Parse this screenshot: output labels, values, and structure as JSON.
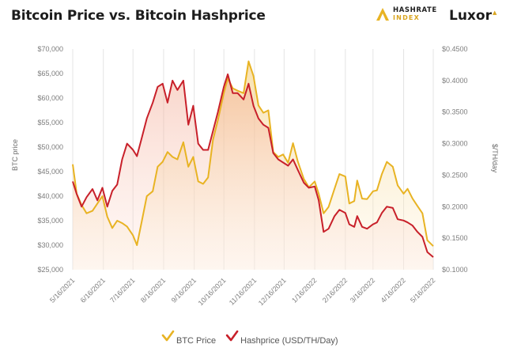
{
  "header": {
    "title": "Bitcoin Price vs. Bitcoin Hashprice",
    "logo_hashrate_line1": "HASHRATE",
    "logo_hashrate_line2": "INDEX",
    "logo_luxor": "Luxor"
  },
  "colors": {
    "btc": "#e8b323",
    "hashprice": "#c8202a",
    "fill_btc": "#f7e2a8",
    "fill_hash": "#f6c9b8"
  },
  "chart_data": {
    "type": "line",
    "title": "Bitcoin Price vs. Bitcoin Hashprice",
    "ylabel_left": "BTC price",
    "ylabel_right": "$/TH/day",
    "ylim_left": [
      25000,
      70000
    ],
    "ylim_right": [
      0.1,
      0.45
    ],
    "yticks_left": [
      "$25,000",
      "$30,000",
      "$35,000",
      "$40,000",
      "$45,000",
      "$50,000",
      "$55,000",
      "$60,000",
      "$65,000",
      "$70,000"
    ],
    "yticks_right": [
      "$0.1000",
      "$0.1500",
      "$0.2000",
      "$0.2500",
      "$0.3000",
      "$0.3500",
      "$0.4000",
      "$0.4500"
    ],
    "xticks": [
      "5/16/2021",
      "6/16/2021",
      "7/16/2021",
      "8/16/2021",
      "9/16/2021",
      "10/16/2021",
      "11/16/2021",
      "12/16/2021",
      "1/16/2022",
      "2/16/2022",
      "3/16/2022",
      "4/16/2022",
      "5/16/2022"
    ],
    "grid": "vertical",
    "legend_position": "bottom",
    "series": [
      {
        "name": "BTC Price",
        "axis": "left",
        "points": [
          [
            "2021-05-16",
            46500
          ],
          [
            "2021-05-20",
            40500
          ],
          [
            "2021-05-25",
            38200
          ],
          [
            "2021-05-30",
            36500
          ],
          [
            "2021-06-05",
            37000
          ],
          [
            "2021-06-10",
            38500
          ],
          [
            "2021-06-15",
            40000
          ],
          [
            "2021-06-20",
            35800
          ],
          [
            "2021-06-25",
            33500
          ],
          [
            "2021-06-30",
            35000
          ],
          [
            "2021-07-05",
            34500
          ],
          [
            "2021-07-10",
            33800
          ],
          [
            "2021-07-16",
            32000
          ],
          [
            "2021-07-20",
            30000
          ],
          [
            "2021-07-25",
            35000
          ],
          [
            "2021-07-30",
            40000
          ],
          [
            "2021-08-05",
            41000
          ],
          [
            "2021-08-10",
            46000
          ],
          [
            "2021-08-15",
            47000
          ],
          [
            "2021-08-20",
            49000
          ],
          [
            "2021-08-25",
            48000
          ],
          [
            "2021-08-30",
            47500
          ],
          [
            "2021-09-05",
            51000
          ],
          [
            "2021-09-10",
            46000
          ],
          [
            "2021-09-15",
            48000
          ],
          [
            "2021-09-20",
            43000
          ],
          [
            "2021-09-25",
            42500
          ],
          [
            "2021-09-30",
            43800
          ],
          [
            "2021-10-05",
            51500
          ],
          [
            "2021-10-10",
            55500
          ],
          [
            "2021-10-16",
            61000
          ],
          [
            "2021-10-20",
            64000
          ],
          [
            "2021-10-25",
            62000
          ],
          [
            "2021-10-30",
            61500
          ],
          [
            "2021-11-05",
            61000
          ],
          [
            "2021-11-10",
            67500
          ],
          [
            "2021-11-15",
            64500
          ],
          [
            "2021-11-20",
            58500
          ],
          [
            "2021-11-25",
            57000
          ],
          [
            "2021-11-30",
            57500
          ],
          [
            "2021-12-05",
            49000
          ],
          [
            "2021-12-10",
            48000
          ],
          [
            "2021-12-15",
            48500
          ],
          [
            "2021-12-20",
            46800
          ],
          [
            "2021-12-25",
            50800
          ],
          [
            "2021-12-30",
            47000
          ],
          [
            "2022-01-05",
            43500
          ],
          [
            "2022-01-10",
            41800
          ],
          [
            "2022-01-16",
            43000
          ],
          [
            "2022-01-20",
            40500
          ],
          [
            "2022-01-25",
            36500
          ],
          [
            "2022-01-30",
            37800
          ],
          [
            "2022-02-05",
            41500
          ],
          [
            "2022-02-10",
            44500
          ],
          [
            "2022-02-16",
            44000
          ],
          [
            "2022-02-20",
            38500
          ],
          [
            "2022-02-25",
            39000
          ],
          [
            "2022-02-28",
            43200
          ],
          [
            "2022-03-05",
            39500
          ],
          [
            "2022-03-10",
            39400
          ],
          [
            "2022-03-16",
            41000
          ],
          [
            "2022-03-20",
            41200
          ],
          [
            "2022-03-25",
            44500
          ],
          [
            "2022-03-30",
            47000
          ],
          [
            "2022-04-05",
            46000
          ],
          [
            "2022-04-10",
            42200
          ],
          [
            "2022-04-16",
            40500
          ],
          [
            "2022-04-20",
            41500
          ],
          [
            "2022-04-25",
            39500
          ],
          [
            "2022-04-30",
            38000
          ],
          [
            "2022-05-05",
            36500
          ],
          [
            "2022-05-10",
            31000
          ],
          [
            "2022-05-16",
            29800
          ]
        ]
      },
      {
        "name": "Hashprice (USD/TH/Day)",
        "axis": "right",
        "points": [
          [
            "2021-05-16",
            0.24
          ],
          [
            "2021-05-20",
            0.22
          ],
          [
            "2021-05-25",
            0.2
          ],
          [
            "2021-05-30",
            0.215
          ],
          [
            "2021-06-05",
            0.228
          ],
          [
            "2021-06-10",
            0.21
          ],
          [
            "2021-06-15",
            0.23
          ],
          [
            "2021-06-20",
            0.2
          ],
          [
            "2021-06-25",
            0.225
          ],
          [
            "2021-06-30",
            0.235
          ],
          [
            "2021-07-05",
            0.275
          ],
          [
            "2021-07-10",
            0.3
          ],
          [
            "2021-07-16",
            0.29
          ],
          [
            "2021-07-20",
            0.28
          ],
          [
            "2021-07-25",
            0.31
          ],
          [
            "2021-07-30",
            0.34
          ],
          [
            "2021-08-05",
            0.365
          ],
          [
            "2021-08-10",
            0.39
          ],
          [
            "2021-08-15",
            0.395
          ],
          [
            "2021-08-20",
            0.365
          ],
          [
            "2021-08-25",
            0.4
          ],
          [
            "2021-08-30",
            0.385
          ],
          [
            "2021-09-05",
            0.4
          ],
          [
            "2021-09-10",
            0.33
          ],
          [
            "2021-09-15",
            0.36
          ],
          [
            "2021-09-20",
            0.3
          ],
          [
            "2021-09-25",
            0.29
          ],
          [
            "2021-09-30",
            0.29
          ],
          [
            "2021-10-05",
            0.32
          ],
          [
            "2021-10-10",
            0.35
          ],
          [
            "2021-10-16",
            0.39
          ],
          [
            "2021-10-20",
            0.41
          ],
          [
            "2021-10-25",
            0.38
          ],
          [
            "2021-10-30",
            0.38
          ],
          [
            "2021-11-05",
            0.37
          ],
          [
            "2021-11-10",
            0.395
          ],
          [
            "2021-11-15",
            0.36
          ],
          [
            "2021-11-20",
            0.34
          ],
          [
            "2021-11-25",
            0.33
          ],
          [
            "2021-11-30",
            0.325
          ],
          [
            "2021-12-05",
            0.285
          ],
          [
            "2021-12-10",
            0.275
          ],
          [
            "2021-12-15",
            0.27
          ],
          [
            "2021-12-20",
            0.265
          ],
          [
            "2021-12-25",
            0.275
          ],
          [
            "2021-12-30",
            0.258
          ],
          [
            "2022-01-05",
            0.238
          ],
          [
            "2022-01-10",
            0.23
          ],
          [
            "2022-01-16",
            0.232
          ],
          [
            "2022-01-20",
            0.21
          ],
          [
            "2022-01-25",
            0.16
          ],
          [
            "2022-01-30",
            0.165
          ],
          [
            "2022-02-05",
            0.185
          ],
          [
            "2022-02-10",
            0.195
          ],
          [
            "2022-02-16",
            0.19
          ],
          [
            "2022-02-20",
            0.172
          ],
          [
            "2022-02-25",
            0.168
          ],
          [
            "2022-02-28",
            0.185
          ],
          [
            "2022-03-05",
            0.168
          ],
          [
            "2022-03-10",
            0.165
          ],
          [
            "2022-03-16",
            0.172
          ],
          [
            "2022-03-20",
            0.175
          ],
          [
            "2022-03-25",
            0.19
          ],
          [
            "2022-03-30",
            0.2
          ],
          [
            "2022-04-05",
            0.198
          ],
          [
            "2022-04-10",
            0.18
          ],
          [
            "2022-04-16",
            0.178
          ],
          [
            "2022-04-20",
            0.175
          ],
          [
            "2022-04-25",
            0.17
          ],
          [
            "2022-04-30",
            0.16
          ],
          [
            "2022-05-05",
            0.152
          ],
          [
            "2022-05-10",
            0.128
          ],
          [
            "2022-05-16",
            0.12
          ]
        ]
      }
    ]
  }
}
